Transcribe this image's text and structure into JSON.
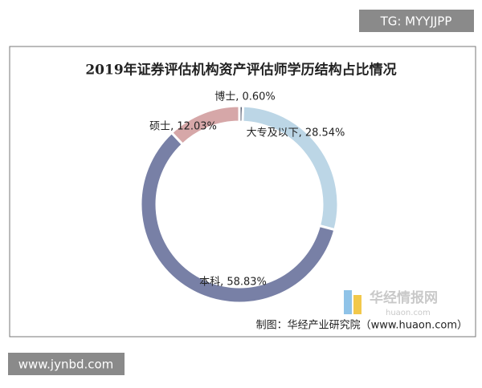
{
  "chart_data": {
    "type": "donut",
    "title": "2019年证券评估机构资产评估师学历结构占比情况",
    "categories": [
      "博士",
      "大专及以下",
      "本科",
      "硕士"
    ],
    "values": [
      0.6,
      28.54,
      58.83,
      12.03
    ],
    "value_labels": [
      "博士, 0.60%",
      "大专及以下, 28.54%",
      "本科, 58.83%",
      "硕士, 12.03%"
    ],
    "colors": [
      "#5a6275",
      "#bcd6e6",
      "#7880a6",
      "#d6a7a8"
    ],
    "source": "制图：华经产业研究院（www.huaon.com）"
  },
  "watermark": {
    "name": "华经情报网",
    "site": "huaon.com"
  },
  "top_tag": "TG: MYYJJPP",
  "bottom_tag": "www.jynbd.com"
}
